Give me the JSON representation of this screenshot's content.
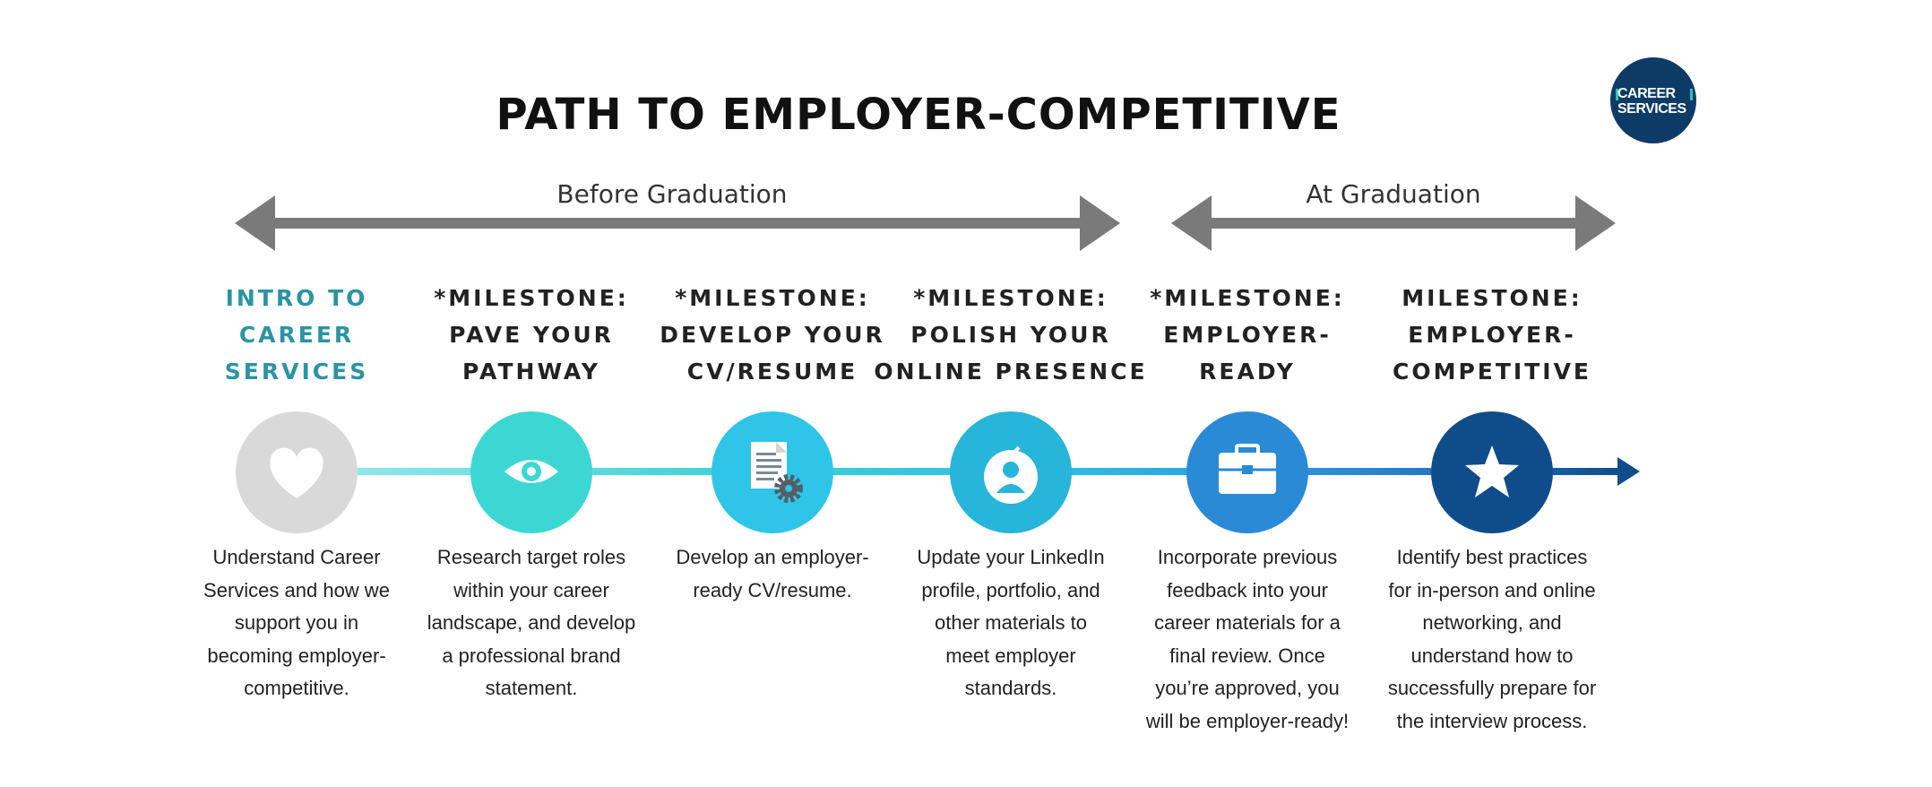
{
  "title": "PATH TO EMPLOYER-COMPETITIVE",
  "logo": {
    "line1": "CAREER",
    "line2": "SERVICES",
    "bg": "#0d3b66",
    "accent": "#2ec4b6"
  },
  "spans": [
    {
      "label": "Before Graduation",
      "color": "#7a7a7a"
    },
    {
      "label": "At Graduation",
      "color": "#7a7a7a"
    }
  ],
  "steps": [
    {
      "heading": [
        "INTRO TO",
        "CAREER",
        "SERVICES"
      ],
      "color": "#d9d9d9",
      "icon": "heart-icon",
      "desc": [
        "Understand Career",
        "Services and how we",
        "support you in",
        "becoming employer-",
        "competitive."
      ]
    },
    {
      "heading": [
        "*MILESTONE:",
        "PAVE YOUR",
        "PATHWAY"
      ],
      "color": "#3dd7d3",
      "icon": "eye-icon",
      "desc": [
        "Research target roles",
        "within your career",
        "landscape, and develop",
        "a professional brand",
        "statement."
      ]
    },
    {
      "heading": [
        "*MILESTONE:",
        "DEVELOP YOUR",
        "CV/RESUME"
      ],
      "color": "#2ec5e8",
      "icon": "document-gear-icon",
      "desc": [
        "Develop an employer-",
        "ready CV/resume."
      ]
    },
    {
      "heading": [
        "*MILESTONE:",
        "POLISH YOUR",
        "ONLINE PRESENCE"
      ],
      "color": "#27b5d9",
      "icon": "profile-check-icon",
      "desc": [
        "Update your LinkedIn",
        "profile, portfolio, and",
        "other materials to",
        "meet employer",
        "standards."
      ]
    },
    {
      "heading": [
        "*MILESTONE:",
        "EMPLOYER-",
        "READY"
      ],
      "color": "#2a8ad6",
      "icon": "briefcase-icon",
      "desc": [
        "Incorporate previous",
        "feedback into your",
        "career materials for a",
        "final review. Once",
        "you’re approved, you",
        "will be employer-ready!"
      ]
    },
    {
      "heading": [
        "MILESTONE:",
        "EMPLOYER-",
        "COMPETITIVE"
      ],
      "color": "#0f4c8a",
      "icon": "star-icon",
      "desc": [
        "Identify best practices",
        "for in-person and online",
        "networking, and",
        "understand how to",
        "successfully prepare for",
        "the interview process."
      ]
    }
  ]
}
